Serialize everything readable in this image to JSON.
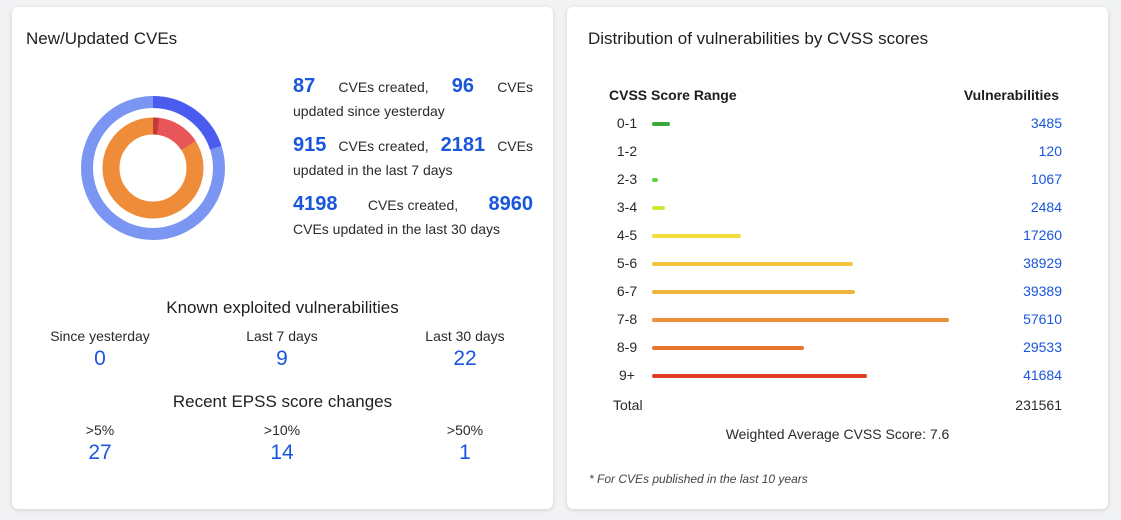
{
  "left_card": {
    "title": "New/Updated CVEs",
    "stats": [
      {
        "created": "87",
        "created_label": "CVEs created,",
        "updated": "96",
        "updated_label": "CVEs",
        "period": "updated since yesterday"
      },
      {
        "created": "915",
        "created_label": "CVEs created,",
        "updated": "2181",
        "updated_label": "CVEs",
        "period": "updated in the last 7 days"
      },
      {
        "created": "4198",
        "created_label": "CVEs created,",
        "updated": "8960",
        "updated_label": "",
        "period": "CVEs updated in the last 30 days"
      }
    ],
    "known_exploited": {
      "title": "Known exploited vulnerabilities",
      "items": [
        {
          "label": "Since yesterday",
          "value": "0"
        },
        {
          "label": "Last 7 days",
          "value": "9"
        },
        {
          "label": "Last 30 days",
          "value": "22"
        }
      ]
    },
    "epss": {
      "title": "Recent EPSS score changes",
      "items": [
        {
          "label": ">5%",
          "value": "27"
        },
        {
          "label": ">10%",
          "value": "14"
        },
        {
          "label": ">50%",
          "value": "1"
        }
      ]
    },
    "donut": {
      "outer": {
        "highlight_fraction": 0.2,
        "base_color": "#7b96f2",
        "highlight_color": "#4a5cf0"
      },
      "inner": {
        "base_color": "#ee8c3a",
        "segments": [
          {
            "fraction": 0.02,
            "color": "#c53a3a"
          },
          {
            "fraction": 0.14,
            "color": "#e9565a"
          }
        ]
      }
    }
  },
  "right_card": {
    "title": "Distribution of vulnerabilities by CVSS scores",
    "col_range": "CVSS Score Range",
    "col_count": "Vulnerabilities",
    "rows": [
      {
        "range": "0-1",
        "count": "3485",
        "value": 3485,
        "color": "#3aa836"
      },
      {
        "range": "1-2",
        "count": "120",
        "value": 120,
        "color": "#4bb53a"
      },
      {
        "range": "2-3",
        "count": "1067",
        "value": 1067,
        "color": "#62d23e"
      },
      {
        "range": "3-4",
        "count": "2484",
        "value": 2484,
        "color": "#c6ea3a"
      },
      {
        "range": "4-5",
        "count": "17260",
        "value": 17260,
        "color": "#f4dc3a"
      },
      {
        "range": "5-6",
        "count": "38929",
        "value": 38929,
        "color": "#f3c53d"
      },
      {
        "range": "6-7",
        "count": "39389",
        "value": 39389,
        "color": "#eeb43b"
      },
      {
        "range": "7-8",
        "count": "57610",
        "value": 57610,
        "color": "#ec8f3a"
      },
      {
        "range": "8-9",
        "count": "29533",
        "value": 29533,
        "color": "#e8732f"
      },
      {
        "range": "9+",
        "count": "41684",
        "value": 41684,
        "color": "#dd3a22"
      }
    ],
    "total_label": "Total",
    "total_value": "231561",
    "weighted_label": "Weighted Average CVSS Score: 7.6",
    "footnote": "* For CVEs published in the last 10 years"
  }
}
